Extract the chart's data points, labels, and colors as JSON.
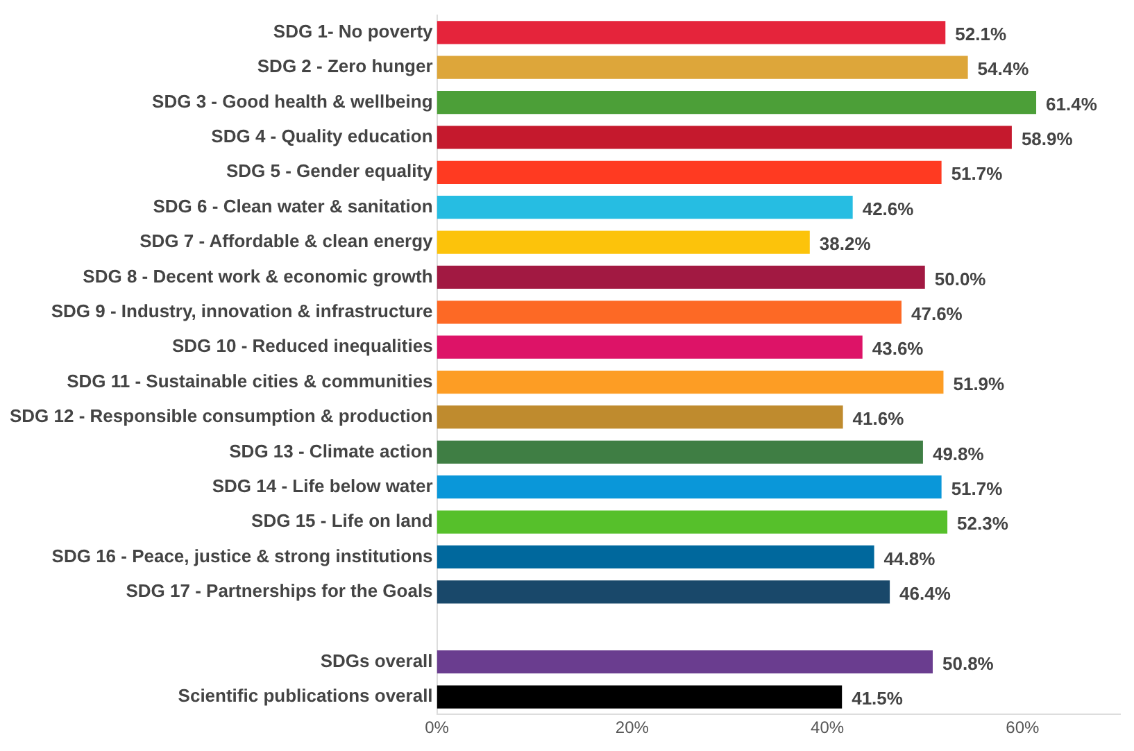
{
  "chart_data": {
    "type": "bar",
    "orientation": "horizontal",
    "categories": [
      "SDG 1- No poverty",
      "SDG 2 - Zero hunger",
      "SDG 3 - Good health & wellbeing",
      "SDG 4 - Quality education",
      "SDG 5 - Gender equality",
      "SDG 6 - Clean water & sanitation",
      "SDG 7 - Affordable & clean energy",
      "SDG 8 - Decent work & economic growth",
      "SDG 9 - Industry, innovation & infrastructure",
      "SDG 10 - Reduced inequalities",
      "SDG 11 - Sustainable cities & communities",
      "SDG 12 - Responsible consumption & production",
      "SDG 13 - Climate action",
      "SDG 14 - Life below water",
      "SDG 15 - Life on land",
      "SDG 16 - Peace, justice & strong institutions",
      "SDG 17 - Partnerships for the Goals",
      null,
      "SDGs overall",
      "Scientific publications overall"
    ],
    "values": [
      52.1,
      54.4,
      61.4,
      58.9,
      51.7,
      42.6,
      38.2,
      50.0,
      47.6,
      43.6,
      51.9,
      41.6,
      49.8,
      51.7,
      52.3,
      44.8,
      46.4,
      null,
      50.8,
      41.5
    ],
    "colors": [
      "#e5243b",
      "#dda63a",
      "#4c9f38",
      "#c5192d",
      "#ff3a21",
      "#26bde2",
      "#fcc30b",
      "#a21942",
      "#fd6925",
      "#dd1367",
      "#fd9d24",
      "#bf8b2e",
      "#3f7e44",
      "#0a97d9",
      "#56c02b",
      "#00689d",
      "#19486a",
      "#ffffff",
      "#6a3d8f",
      "#000000"
    ],
    "value_labels": [
      "52.1%",
      "54.4%",
      "61.4%",
      "58.9%",
      "51.7%",
      "42.6%",
      "38.2%",
      "50.0%",
      "47.6%",
      "43.6%",
      "51.9%",
      "41.6%",
      "49.8%",
      "51.7%",
      "52.3%",
      "44.8%",
      "46.4%",
      null,
      "50.8%",
      "41.5%"
    ],
    "xlim": [
      0,
      70
    ],
    "xticks": [
      {
        "value": 0,
        "label": "0%"
      },
      {
        "value": 20,
        "label": "20%"
      },
      {
        "value": 40,
        "label": "40%"
      },
      {
        "value": 60,
        "label": "60%"
      }
    ],
    "grid": false,
    "legend": false
  }
}
